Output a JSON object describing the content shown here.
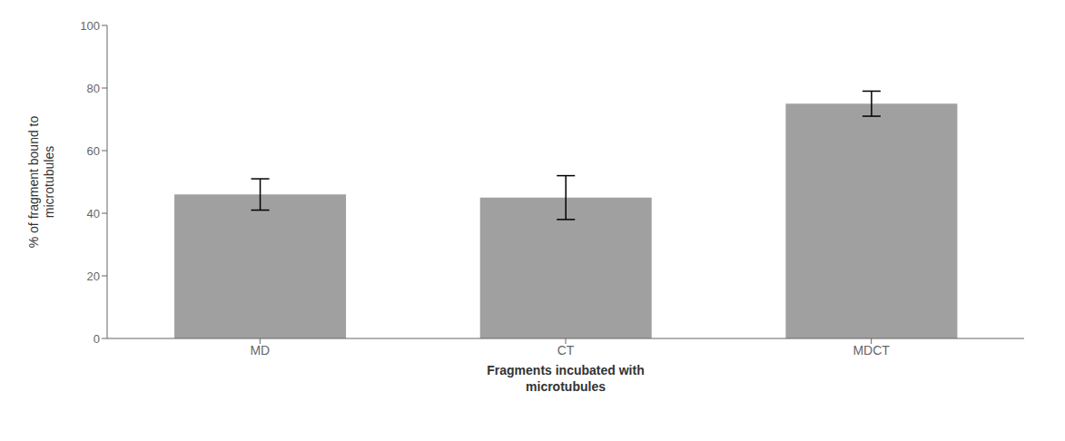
{
  "chart_data": {
    "type": "bar",
    "categories": [
      "MD",
      "CT",
      "MDCT"
    ],
    "values": [
      46,
      45,
      75
    ],
    "errors": [
      5,
      7,
      4
    ],
    "color": "#a0a0a0",
    "ylabel": "% of fragment bound to\nmicrotubules",
    "xlabel": "Fragments incubated with\nmicrotubules",
    "ylim": [
      0,
      100
    ],
    "yticks": [
      0,
      20,
      40,
      60,
      80,
      100
    ],
    "grid": false
  }
}
